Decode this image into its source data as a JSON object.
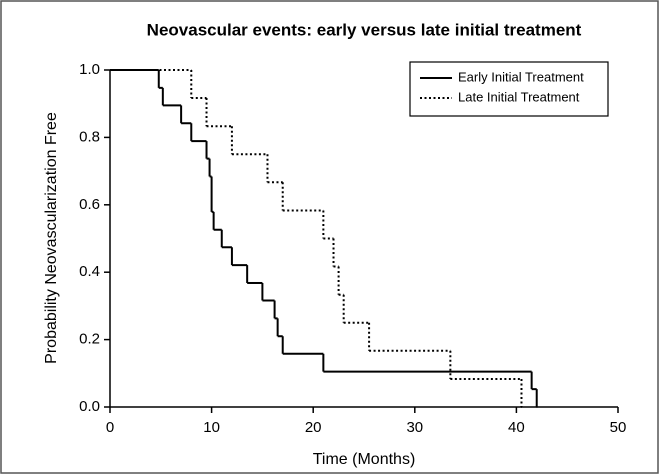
{
  "chart_data": {
    "type": "step",
    "title": "Neovascular events: early versus late initial treatment",
    "x_label": "Time (Months)",
    "y_label": "Probability Neovascularization Free",
    "xlim": [
      0,
      50
    ],
    "xticks": [
      0,
      10,
      20,
      30,
      40,
      50
    ],
    "ylim": [
      0,
      1
    ],
    "yticks": [
      {
        "value": 0,
        "label": "0.0"
      },
      0.2,
      0.4,
      0.6,
      0.8,
      {
        "value": 1,
        "label": "1.0"
      }
    ],
    "legend": "upper right",
    "series": [
      {
        "name": "Early Initial Treatment",
        "color": "#000000",
        "dash": "solid",
        "x": [
          0,
          4.8,
          5.2,
          7,
          8,
          9.5,
          9.8,
          10,
          10.2,
          11,
          12,
          13.5,
          15,
          16.2,
          16.5,
          17,
          21,
          41.5,
          42
        ],
        "values": [
          1.0,
          0.947,
          0.895,
          0.842,
          0.789,
          0.737,
          0.684,
          0.579,
          0.526,
          0.474,
          0.421,
          0.368,
          0.316,
          0.263,
          0.21,
          0.158,
          0.105,
          0.053,
          0
        ]
      },
      {
        "name": "Late Initial Treatment",
        "color": "#000000",
        "dash": "dotted",
        "x": [
          0,
          8,
          9.5,
          12,
          15.5,
          17,
          21,
          22,
          22.5,
          23,
          25.5,
          33.5,
          40.5
        ],
        "values": [
          1.0,
          0.917,
          0.833,
          0.75,
          0.667,
          0.583,
          0.5,
          0.417,
          0.333,
          0.25,
          0.167,
          0.083,
          0
        ]
      }
    ]
  }
}
